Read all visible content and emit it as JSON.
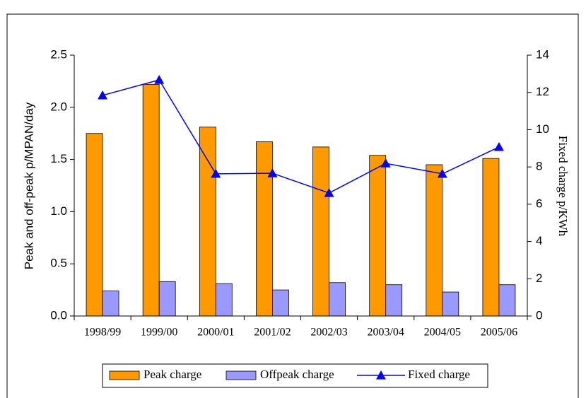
{
  "chart_data": {
    "type": "bar_line",
    "categories": [
      "1998/99",
      "1999/00",
      "2000/01",
      "2001/02",
      "2002/03",
      "2003/04",
      "2004/05",
      "2005/06"
    ],
    "series": [
      {
        "name": "Peak charge",
        "color": "#ff9900",
        "type": "bar",
        "values": [
          1.75,
          2.22,
          1.81,
          1.67,
          1.62,
          1.54,
          1.45,
          1.51
        ]
      },
      {
        "name": "Offpeak charge",
        "color": "#9999ff",
        "type": "bar",
        "values": [
          0.24,
          0.33,
          0.31,
          0.25,
          0.32,
          0.3,
          0.23,
          0.3
        ]
      },
      {
        "name": "Fixed charge",
        "color": "#0000ff",
        "type": "line",
        "axis": "y2",
        "values": [
          11.84,
          12.67,
          7.63,
          7.66,
          6.6,
          8.19,
          7.63,
          9.07
        ]
      }
    ],
    "ylabel": "Peak and off-peak p/MPAN/day",
    "y2label": "Fixed charge p/KWh",
    "ylim": [
      0,
      2.5
    ],
    "yticks": [
      {
        "value": 0,
        "label": "0.0"
      },
      0.5,
      {
        "value": 1,
        "label": "1.0"
      },
      1.5,
      {
        "value": 2,
        "label": "2.0"
      },
      2.5
    ],
    "y2lim": [
      0,
      14
    ],
    "y2ticks": [
      0,
      2,
      4,
      6,
      8,
      10,
      12,
      14
    ],
    "legend": "bottom"
  }
}
